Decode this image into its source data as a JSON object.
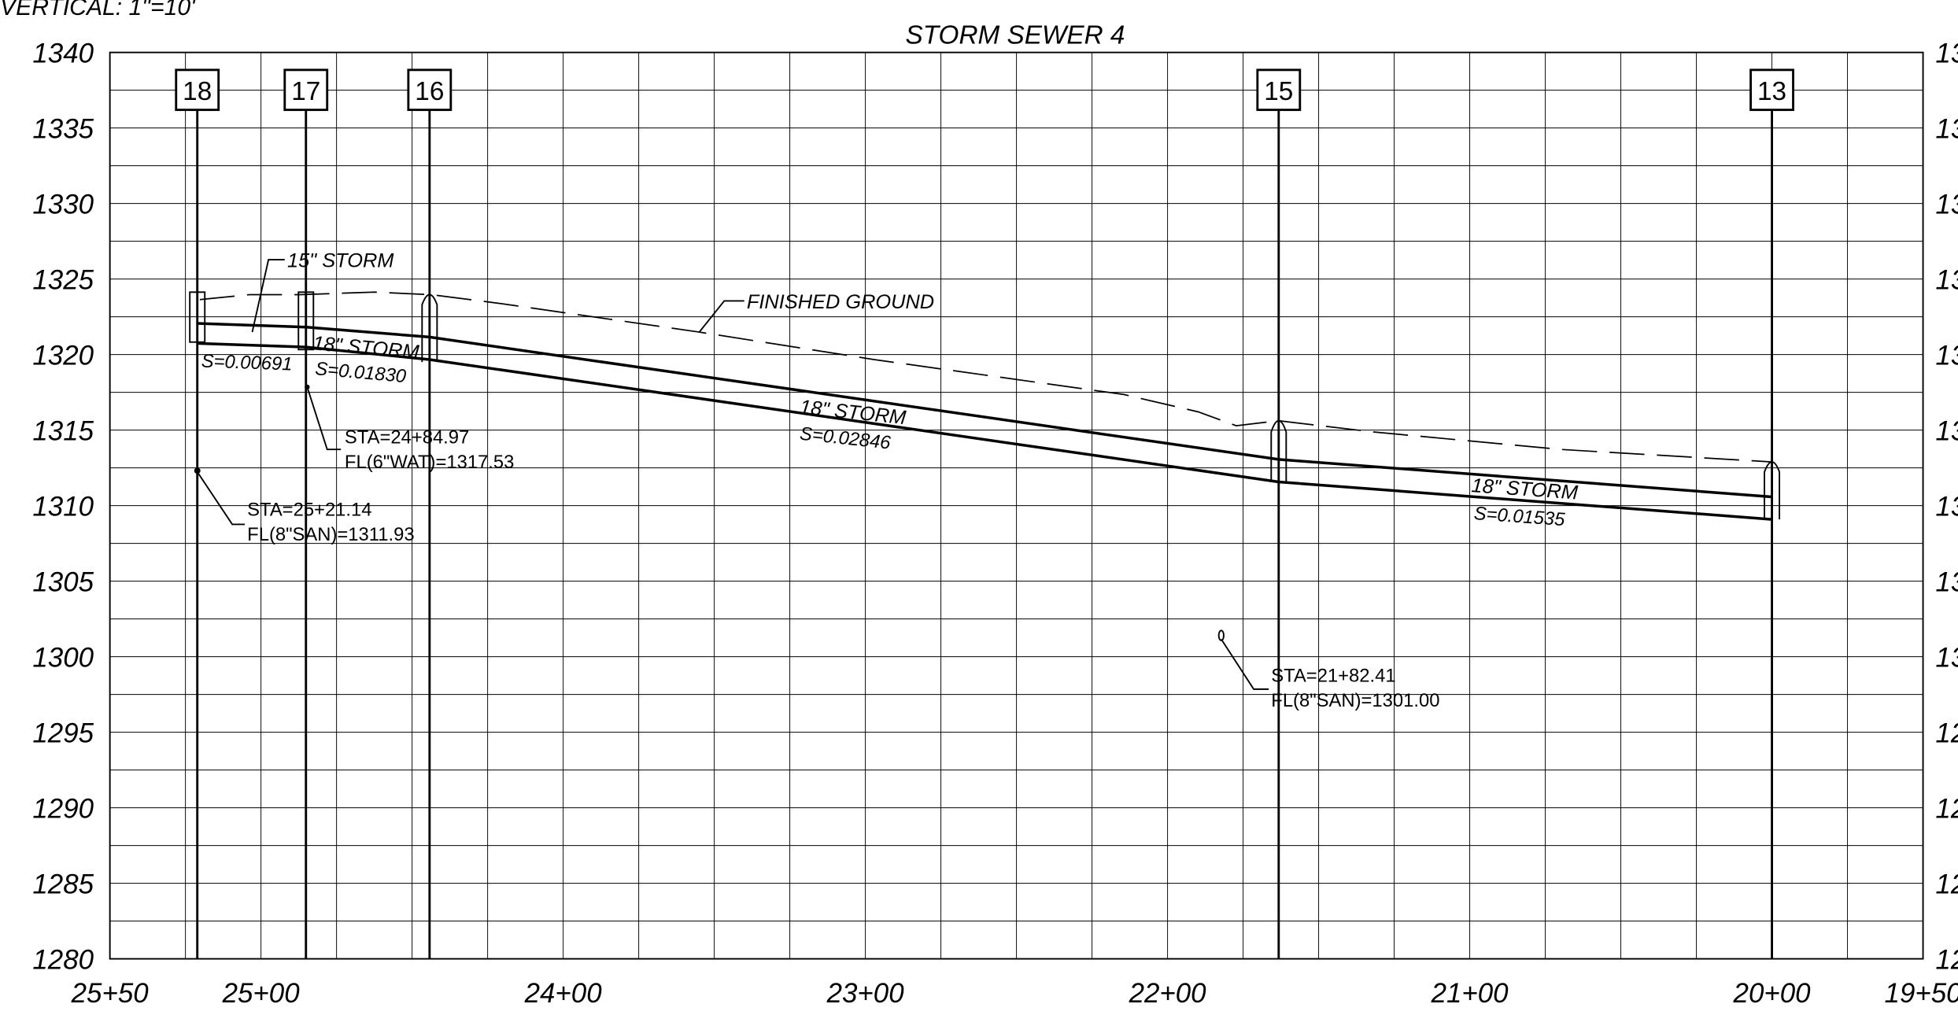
{
  "title": "STORM SEWER 4",
  "scale_note": "VERTICAL: 1\"=10'",
  "y_axis_labels": [
    "1340",
    "1335",
    "1330",
    "1325",
    "1320",
    "1315",
    "1310",
    "1305",
    "1300",
    "1295",
    "1290",
    "1285",
    "1280"
  ],
  "x_axis_labels": [
    "25+50",
    "25+00",
    "24+00",
    "23+00",
    "22+00",
    "21+00",
    "20+00",
    "19+50"
  ],
  "structures": [
    "18",
    "17",
    "16",
    "15",
    "13"
  ],
  "annotations": {
    "storm_15": "15\" STORM",
    "finished_ground": "FINISHED GROUND",
    "slope_18_17": "S=0.00691",
    "pipe_17_16": "18\" STORM",
    "slope_17_16": "S=0.01830",
    "pipe_16_15": "18\" STORM",
    "slope_16_15": "S=0.02846",
    "pipe_15_13": "18\" STORM",
    "slope_15_13": "S=0.01535",
    "crossing_1_sta": "STA=24+84.97",
    "crossing_1_fl": "FL(6\"WAT)=1317.53",
    "crossing_2_sta": "STA=25+21.14",
    "crossing_2_fl": "FL(8\"SAN)=1311.93",
    "crossing_3_sta": "STA=21+82.41",
    "crossing_3_fl": "FL(8\"SAN)=1301.00"
  }
}
